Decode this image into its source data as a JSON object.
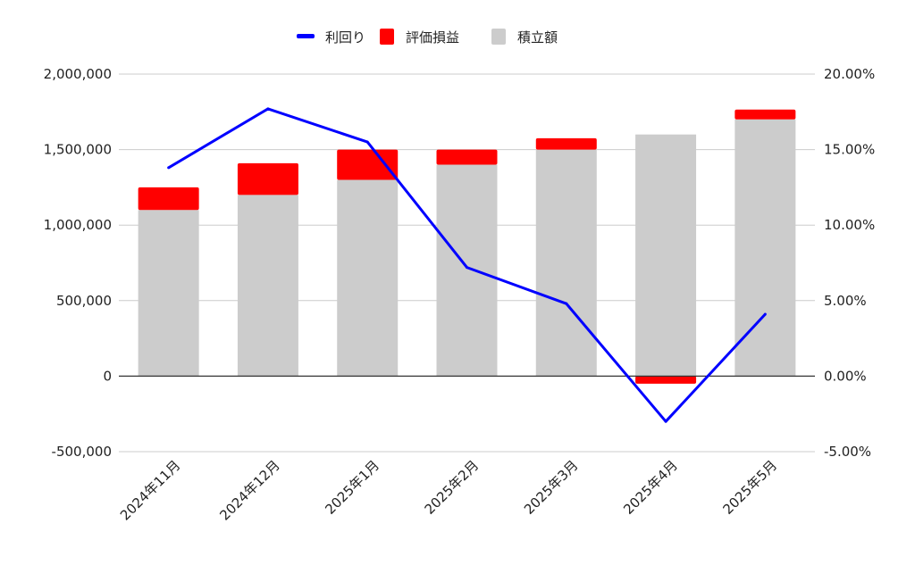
{
  "chart_data": {
    "type": "bar",
    "categories": [
      "2024年11月",
      "2024年12月",
      "2025年1月",
      "2025年2月",
      "2025年3月",
      "2025年4月",
      "2025年5月"
    ],
    "series": [
      {
        "name": "積立額",
        "kind": "stacked-bar",
        "axis": "left",
        "color": "#cccccc",
        "values": [
          1100000,
          1200000,
          1300000,
          1400000,
          1500000,
          1600000,
          1700000
        ]
      },
      {
        "name": "評価損益",
        "kind": "stacked-bar",
        "axis": "left",
        "color": "#ff0000",
        "values": [
          150000,
          210000,
          200000,
          100000,
          75000,
          -50000,
          65000
        ]
      },
      {
        "name": "利回り",
        "kind": "line",
        "axis": "right",
        "color": "#0000ff",
        "values": [
          13.8,
          17.7,
          15.5,
          7.2,
          4.8,
          -3.0,
          4.1
        ]
      }
    ],
    "legend": {
      "position": "top",
      "items": [
        {
          "label": "利回り",
          "color": "#0000ff",
          "marker": "line"
        },
        {
          "label": "評価損益",
          "color": "#ff0000",
          "marker": "square"
        },
        {
          "label": "積立額",
          "color": "#cccccc",
          "marker": "square"
        }
      ]
    },
    "y_left": {
      "lim": [
        -500000,
        2000000
      ],
      "ticks": [
        2000000,
        1500000,
        1000000,
        500000,
        0,
        -500000
      ],
      "tick_labels": [
        "2,000,000",
        "1,500,000",
        "1,000,000",
        "500,000",
        "0",
        "-500,000"
      ]
    },
    "y_right": {
      "lim": [
        -5,
        20
      ],
      "unit": "%",
      "ticks": [
        20,
        15,
        10,
        5,
        0,
        -5
      ],
      "tick_labels": [
        "20.00%",
        "15.00%",
        "10.00%",
        "5.00%",
        "0.00%",
        "-5.00%"
      ]
    },
    "grid": true,
    "x_tick_rotation_deg": -45
  }
}
